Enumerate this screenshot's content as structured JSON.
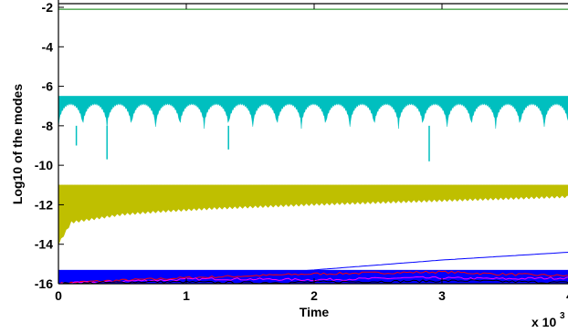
{
  "chart_data": {
    "type": "line",
    "title": "",
    "xlabel": "Time",
    "ylabel": "Log10 of the modes",
    "x_multiplier_label": "x 10",
    "x_multiplier_exponent": "3",
    "xlim": [
      0,
      4000
    ],
    "ylim": [
      -16,
      -2
    ],
    "x_ticks": [
      0,
      1000,
      2000,
      3000,
      4000
    ],
    "x_tick_labels": [
      "0",
      "1",
      "2",
      "3",
      "4"
    ],
    "y_ticks": [
      -16,
      -14,
      -12,
      -10,
      -8,
      -6,
      -4,
      -2
    ],
    "y_tick_labels": [
      "-16",
      "-14",
      "-12",
      "-10",
      "-8",
      "-6",
      "-4",
      "-2"
    ],
    "grid": false,
    "legend": "none",
    "series": [
      {
        "color": "#007f00",
        "style": "flat",
        "y_top": -2.1
      },
      {
        "color": "#00bfbf",
        "style": "oscillating-band",
        "y_top": -6.5,
        "y_bottom_typical": -8.0,
        "period": 190,
        "dip_x": [
          140,
          380,
          1330,
          2900
        ],
        "dip_y": [
          -9.0,
          -9.7,
          -9.2,
          -9.8
        ]
      },
      {
        "color": "#bfbf00",
        "style": "rising-band",
        "x": [
          0,
          100,
          300,
          500,
          800,
          1200,
          1600,
          2000,
          2500,
          3000,
          3500,
          4000
        ],
        "y_top": [
          -11.0,
          -11.0,
          -11.0,
          -11.0,
          -11.0,
          -11.0,
          -11.0,
          -11.0,
          -11.0,
          -11.0,
          -11.0,
          -11.0
        ],
        "y_bottom": [
          -14.0,
          -12.9,
          -12.7,
          -12.5,
          -12.35,
          -12.2,
          -12.1,
          -12.0,
          -11.9,
          -11.8,
          -11.7,
          -11.6
        ]
      },
      {
        "color": "#0000ff",
        "style": "noise-band",
        "y_top": -15.3,
        "y_bottom": -16.0
      },
      {
        "color": "#0000ff",
        "style": "line",
        "x": [
          0,
          1000,
          2000,
          3000,
          4000
        ],
        "y": [
          -16.0,
          -15.8,
          -15.3,
          -14.8,
          -14.4
        ]
      },
      {
        "color": "#ff0000",
        "style": "line",
        "x": [
          0,
          200,
          600,
          1000,
          1500,
          2000,
          2500,
          3000,
          3400,
          4000
        ],
        "y": [
          -16.0,
          -15.9,
          -15.8,
          -15.7,
          -15.6,
          -15.5,
          -15.45,
          -15.4,
          -15.5,
          -15.6
        ]
      },
      {
        "color": "#ff00ff",
        "style": "line",
        "x": [
          0,
          600,
          1200,
          2000,
          2800,
          3500,
          4000
        ],
        "y": [
          -16.0,
          -15.85,
          -15.75,
          -15.8,
          -15.7,
          -15.75,
          -15.7
        ]
      },
      {
        "color": "#000000",
        "style": "line",
        "x": [
          0,
          700,
          1500,
          2300,
          3200,
          4000
        ],
        "y": [
          -16.0,
          -15.9,
          -15.95,
          -15.9,
          -15.85,
          -15.95
        ]
      }
    ]
  }
}
